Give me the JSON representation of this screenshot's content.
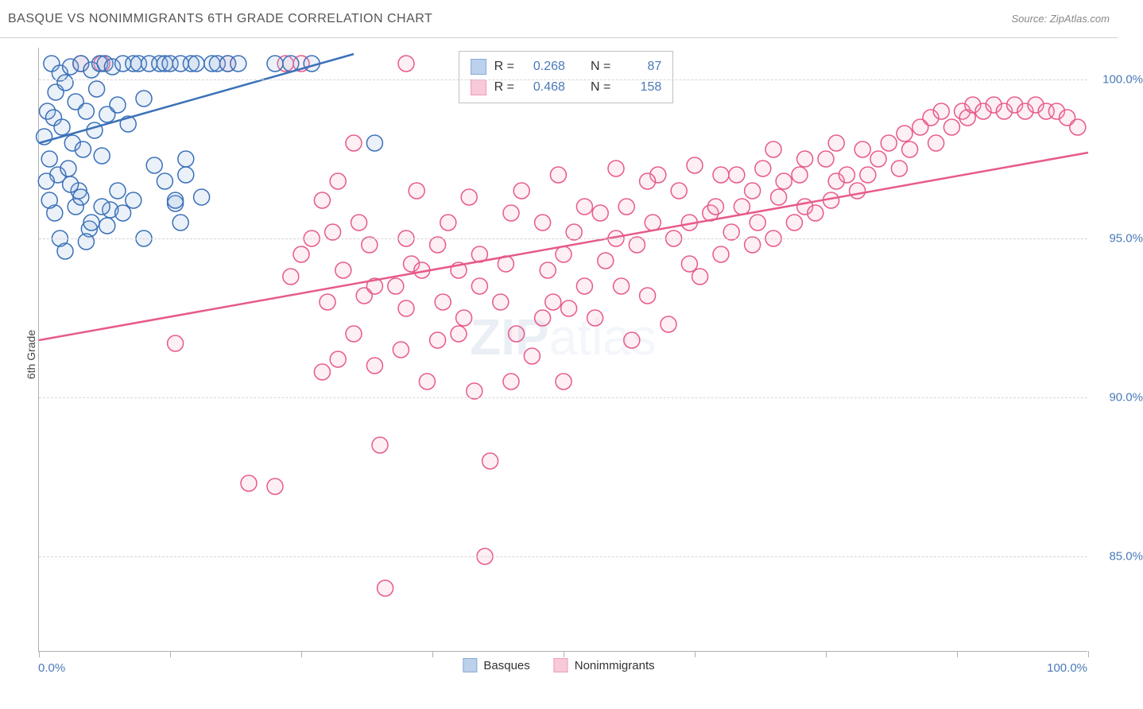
{
  "header": {
    "title": "BASQUE VS NONIMMIGRANTS 6TH GRADE CORRELATION CHART",
    "source_label": "Source: ",
    "source_value": "ZipAtlas.com"
  },
  "watermark": "ZIPatlas",
  "chart": {
    "type": "scatter",
    "ylabel": "6th Grade",
    "xlim": [
      0,
      100
    ],
    "ylim": [
      82,
      101
    ],
    "x_axis_labels": {
      "min": "0.0%",
      "max": "100.0%"
    },
    "y_ticks": [
      {
        "value": 85.0,
        "label": "85.0%"
      },
      {
        "value": 90.0,
        "label": "90.0%"
      },
      {
        "value": 95.0,
        "label": "95.0%"
      },
      {
        "value": 100.0,
        "label": "100.0%"
      }
    ],
    "x_tick_positions": [
      0,
      12.5,
      25,
      37.5,
      50,
      62.5,
      75,
      87.5,
      100
    ],
    "grid_color": "#d5d5d5",
    "background_color": "#ffffff",
    "marker_radius": 10,
    "marker_stroke_width": 1.5,
    "marker_fill_opacity": 0.18,
    "trend_line_width": 2.5,
    "series": {
      "basques": {
        "label": "Basques",
        "color_stroke": "#3b71b8",
        "color_fill": "#8fb4e0",
        "trend": {
          "x1": 0,
          "y1": 98.0,
          "x2": 30,
          "y2": 100.8
        },
        "points": [
          [
            0.5,
            98.2
          ],
          [
            0.8,
            99.0
          ],
          [
            1.0,
            97.5
          ],
          [
            1.2,
            100.5
          ],
          [
            1.4,
            98.8
          ],
          [
            1.6,
            99.6
          ],
          [
            1.8,
            97.0
          ],
          [
            2.0,
            100.2
          ],
          [
            2.2,
            98.5
          ],
          [
            2.5,
            99.9
          ],
          [
            2.8,
            97.2
          ],
          [
            3.0,
            100.4
          ],
          [
            3.2,
            98.0
          ],
          [
            3.5,
            99.3
          ],
          [
            3.8,
            96.5
          ],
          [
            4.0,
            100.5
          ],
          [
            4.2,
            97.8
          ],
          [
            4.5,
            99.0
          ],
          [
            4.8,
            95.3
          ],
          [
            5.0,
            100.3
          ],
          [
            5.3,
            98.4
          ],
          [
            5.5,
            99.7
          ],
          [
            5.8,
            100.5
          ],
          [
            6.0,
            97.6
          ],
          [
            6.3,
            100.5
          ],
          [
            6.5,
            98.9
          ],
          [
            6.8,
            95.9
          ],
          [
            7.0,
            100.4
          ],
          [
            7.5,
            99.2
          ],
          [
            8.0,
            100.5
          ],
          [
            8.5,
            98.6
          ],
          [
            9.0,
            100.5
          ],
          [
            9.5,
            100.5
          ],
          [
            10.0,
            99.4
          ],
          [
            10.5,
            100.5
          ],
          [
            11.0,
            97.3
          ],
          [
            11.5,
            100.5
          ],
          [
            12.0,
            100.5
          ],
          [
            12.5,
            100.5
          ],
          [
            13.0,
            96.1
          ],
          [
            13.5,
            100.5
          ],
          [
            14.0,
            97.5
          ],
          [
            14.5,
            100.5
          ],
          [
            15.0,
            100.5
          ],
          [
            15.5,
            96.3
          ],
          [
            16.5,
            100.5
          ],
          [
            17.0,
            100.5
          ],
          [
            18.0,
            100.5
          ],
          [
            19.0,
            100.5
          ],
          [
            22.5,
            100.5
          ],
          [
            24.0,
            100.5
          ],
          [
            26.0,
            100.5
          ],
          [
            3.0,
            96.7
          ],
          [
            3.5,
            96.0
          ],
          [
            4.0,
            96.3
          ],
          [
            4.5,
            94.9
          ],
          [
            5.0,
            95.5
          ],
          [
            2.0,
            95.0
          ],
          [
            2.5,
            94.6
          ],
          [
            1.5,
            95.8
          ],
          [
            1.0,
            96.2
          ],
          [
            0.7,
            96.8
          ],
          [
            6.0,
            96.0
          ],
          [
            6.5,
            95.4
          ],
          [
            7.5,
            96.5
          ],
          [
            8.0,
            95.8
          ],
          [
            9.0,
            96.2
          ],
          [
            10.0,
            95.0
          ],
          [
            12.0,
            96.8
          ],
          [
            13.0,
            96.2
          ],
          [
            13.5,
            95.5
          ],
          [
            14.0,
            97.0
          ],
          [
            32.0,
            98.0
          ]
        ]
      },
      "nonimmigrants": {
        "label": "Nonimmigrants",
        "color_stroke": "#e75a8b",
        "color_fill": "#f5a6c0",
        "trend": {
          "x1": 0,
          "y1": 91.8,
          "x2": 100,
          "y2": 97.7
        },
        "points": [
          [
            4.0,
            100.5
          ],
          [
            6.0,
            100.5
          ],
          [
            18.0,
            100.5
          ],
          [
            23.5,
            100.5
          ],
          [
            25.0,
            100.5
          ],
          [
            35.0,
            100.5
          ],
          [
            13.0,
            91.7
          ],
          [
            20.0,
            87.3
          ],
          [
            22.5,
            87.2
          ],
          [
            24.0,
            93.8
          ],
          [
            25.0,
            94.5
          ],
          [
            26.0,
            95.0
          ],
          [
            27.0,
            96.2
          ],
          [
            27.5,
            93.0
          ],
          [
            28.0,
            95.2
          ],
          [
            28.5,
            96.8
          ],
          [
            29.0,
            94.0
          ],
          [
            30.0,
            98.0
          ],
          [
            30.5,
            95.5
          ],
          [
            31.0,
            93.2
          ],
          [
            31.5,
            94.8
          ],
          [
            32.0,
            91.0
          ],
          [
            32.5,
            88.5
          ],
          [
            33.0,
            84.0
          ],
          [
            34.0,
            93.5
          ],
          [
            34.5,
            91.5
          ],
          [
            35.0,
            95.0
          ],
          [
            35.5,
            94.2
          ],
          [
            36.0,
            96.5
          ],
          [
            37.0,
            90.5
          ],
          [
            38.0,
            94.8
          ],
          [
            38.5,
            93.0
          ],
          [
            39.0,
            95.5
          ],
          [
            40.0,
            94.0
          ],
          [
            40.5,
            92.5
          ],
          [
            41.0,
            96.3
          ],
          [
            41.5,
            90.2
          ],
          [
            42.0,
            94.5
          ],
          [
            42.5,
            85.0
          ],
          [
            43.0,
            88.0
          ],
          [
            44.0,
            93.0
          ],
          [
            44.5,
            94.2
          ],
          [
            45.0,
            95.8
          ],
          [
            45.5,
            92.0
          ],
          [
            46.0,
            96.5
          ],
          [
            47.0,
            91.3
          ],
          [
            48.0,
            95.5
          ],
          [
            48.5,
            94.0
          ],
          [
            49.0,
            93.0
          ],
          [
            49.5,
            97.0
          ],
          [
            50.0,
            94.5
          ],
          [
            50.5,
            92.8
          ],
          [
            51.0,
            95.2
          ],
          [
            52.0,
            96.0
          ],
          [
            53.0,
            92.5
          ],
          [
            53.5,
            95.8
          ],
          [
            54.0,
            94.3
          ],
          [
            55.0,
            97.2
          ],
          [
            55.5,
            93.5
          ],
          [
            56.0,
            96.0
          ],
          [
            56.5,
            91.8
          ],
          [
            57.0,
            94.8
          ],
          [
            58.0,
            93.2
          ],
          [
            58.5,
            95.5
          ],
          [
            59.0,
            97.0
          ],
          [
            60.0,
            92.3
          ],
          [
            60.5,
            95.0
          ],
          [
            61.0,
            96.5
          ],
          [
            62.0,
            94.2
          ],
          [
            62.5,
            97.3
          ],
          [
            63.0,
            93.8
          ],
          [
            64.0,
            95.8
          ],
          [
            64.5,
            96.0
          ],
          [
            65.0,
            94.5
          ],
          [
            66.0,
            95.2
          ],
          [
            66.5,
            97.0
          ],
          [
            67.0,
            96.0
          ],
          [
            68.0,
            94.8
          ],
          [
            68.5,
            95.5
          ],
          [
            69.0,
            97.2
          ],
          [
            70.0,
            95.0
          ],
          [
            70.5,
            96.3
          ],
          [
            71.0,
            96.8
          ],
          [
            72.0,
            95.5
          ],
          [
            72.5,
            97.0
          ],
          [
            73.0,
            96.0
          ],
          [
            74.0,
            95.8
          ],
          [
            75.0,
            97.5
          ],
          [
            75.5,
            96.2
          ],
          [
            76.0,
            96.8
          ],
          [
            77.0,
            97.0
          ],
          [
            78.0,
            96.5
          ],
          [
            78.5,
            97.8
          ],
          [
            79.0,
            97.0
          ],
          [
            80.0,
            97.5
          ],
          [
            81.0,
            98.0
          ],
          [
            82.0,
            97.2
          ],
          [
            82.5,
            98.3
          ],
          [
            83.0,
            97.8
          ],
          [
            84.0,
            98.5
          ],
          [
            85.0,
            98.8
          ],
          [
            85.5,
            98.0
          ],
          [
            86.0,
            99.0
          ],
          [
            87.0,
            98.5
          ],
          [
            88.0,
            99.0
          ],
          [
            88.5,
            98.8
          ],
          [
            89.0,
            99.2
          ],
          [
            90.0,
            99.0
          ],
          [
            91.0,
            99.2
          ],
          [
            92.0,
            99.0
          ],
          [
            93.0,
            99.2
          ],
          [
            94.0,
            99.0
          ],
          [
            95.0,
            99.2
          ],
          [
            96.0,
            99.0
          ],
          [
            97.0,
            99.0
          ],
          [
            98.0,
            98.8
          ],
          [
            99.0,
            98.5
          ],
          [
            27.0,
            90.8
          ],
          [
            28.5,
            91.2
          ],
          [
            30.0,
            92.0
          ],
          [
            32.0,
            93.5
          ],
          [
            35.0,
            92.8
          ],
          [
            36.5,
            94.0
          ],
          [
            38.0,
            91.8
          ],
          [
            40.0,
            92.0
          ],
          [
            42.0,
            93.5
          ],
          [
            45.0,
            90.5
          ],
          [
            48.0,
            92.5
          ],
          [
            50.0,
            90.5
          ],
          [
            52.0,
            93.5
          ],
          [
            55.0,
            95.0
          ],
          [
            58.0,
            96.8
          ],
          [
            62.0,
            95.5
          ],
          [
            65.0,
            97.0
          ],
          [
            68.0,
            96.5
          ],
          [
            70.0,
            97.8
          ],
          [
            73.0,
            97.5
          ],
          [
            76.0,
            98.0
          ]
        ]
      }
    }
  },
  "stats_legend": {
    "rows": [
      {
        "series": "basques",
        "r_label": "R =",
        "r_value": "0.268",
        "n_label": "N =",
        "n_value": "87"
      },
      {
        "series": "nonimmigrants",
        "r_label": "R =",
        "r_value": "0.468",
        "n_label": "N =",
        "n_value": "158"
      }
    ]
  }
}
